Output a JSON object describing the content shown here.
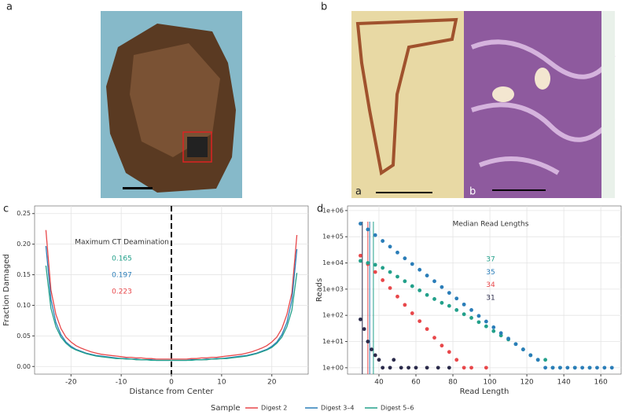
{
  "panel_labels": [
    "a",
    "b",
    "c",
    "d"
  ],
  "image_labels": [
    "a",
    "b"
  ],
  "legend_title": "Sample",
  "chart_data": [
    {
      "type": "line",
      "x_label": "Distance from Center",
      "y_label": "Fraction Damaged",
      "x": [
        -25,
        -24,
        -23,
        -22,
        -21,
        -20,
        -19,
        -18,
        -17,
        -16,
        -15,
        -14,
        -13,
        -12,
        -11,
        -10,
        -9,
        -8,
        -7,
        -6,
        -5,
        -4,
        -3,
        -2,
        -1,
        0,
        1,
        2,
        3,
        4,
        5,
        6,
        7,
        8,
        9,
        10,
        11,
        12,
        13,
        14,
        15,
        16,
        17,
        18,
        19,
        20,
        21,
        22,
        23,
        24,
        25
      ],
      "series": [
        {
          "name": "Digest 2",
          "color": "#e8474a",
          "values": [
            0.223,
            0.125,
            0.085,
            0.062,
            0.048,
            0.04,
            0.034,
            0.03,
            0.027,
            0.024,
            0.022,
            0.02,
            0.019,
            0.018,
            0.017,
            0.016,
            0.015,
            0.015,
            0.014,
            0.014,
            0.013,
            0.013,
            0.012,
            0.012,
            0.012,
            0.012,
            0.012,
            0.012,
            0.012,
            0.013,
            0.013,
            0.014,
            0.014,
            0.015,
            0.015,
            0.016,
            0.017,
            0.018,
            0.019,
            0.02,
            0.022,
            0.024,
            0.027,
            0.03,
            0.034,
            0.04,
            0.048,
            0.062,
            0.085,
            0.12,
            0.215
          ]
        },
        {
          "name": "Digest 3–4",
          "color": "#2a7db8",
          "values": [
            0.197,
            0.11,
            0.072,
            0.052,
            0.04,
            0.033,
            0.028,
            0.025,
            0.022,
            0.02,
            0.018,
            0.017,
            0.016,
            0.015,
            0.014,
            0.013,
            0.013,
            0.012,
            0.012,
            0.011,
            0.011,
            0.011,
            0.01,
            0.01,
            0.01,
            0.01,
            0.01,
            0.01,
            0.01,
            0.011,
            0.011,
            0.011,
            0.012,
            0.012,
            0.013,
            0.013,
            0.014,
            0.015,
            0.016,
            0.017,
            0.018,
            0.02,
            0.022,
            0.025,
            0.028,
            0.033,
            0.04,
            0.052,
            0.072,
            0.108,
            0.192
          ]
        },
        {
          "name": "Digest 5–6",
          "color": "#22a08a",
          "values": [
            0.165,
            0.095,
            0.065,
            0.048,
            0.038,
            0.031,
            0.027,
            0.024,
            0.021,
            0.019,
            0.017,
            0.016,
            0.015,
            0.014,
            0.013,
            0.013,
            0.012,
            0.012,
            0.011,
            0.011,
            0.011,
            0.01,
            0.01,
            0.01,
            0.01,
            0.01,
            0.01,
            0.01,
            0.01,
            0.01,
            0.011,
            0.011,
            0.011,
            0.012,
            0.012,
            0.013,
            0.013,
            0.014,
            0.015,
            0.016,
            0.017,
            0.019,
            0.021,
            0.024,
            0.027,
            0.031,
            0.038,
            0.048,
            0.065,
            0.092,
            0.153
          ]
        }
      ],
      "xlim": [
        -27.25,
        27.25
      ],
      "xticks": [
        -20,
        -10,
        0,
        10,
        20
      ],
      "ylim": [
        -0.0125,
        0.2625
      ],
      "yticks": [
        {
          "value": 0,
          "label": "0.00"
        },
        {
          "value": 0.05,
          "label": "0.05"
        },
        {
          "value": 0.1,
          "label": "0.10"
        },
        {
          "value": 0.15,
          "label": "0.15"
        },
        {
          "value": 0.2,
          "label": "0.20"
        },
        {
          "value": 0.25,
          "label": "0.25"
        }
      ],
      "grid": true,
      "vline": 0,
      "annotation_title": "Maximum CT Deamination",
      "annotation_values": [
        {
          "value": 0.165,
          "color": "#22a08a"
        },
        {
          "value": 0.197,
          "color": "#2a7db8"
        },
        {
          "value": 0.223,
          "color": "#e8474a"
        }
      ]
    },
    {
      "type": "scatter",
      "x_label": "Read Length",
      "y_label": "Reads",
      "log_y": true,
      "series": [
        {
          "color": "#2a2a4a",
          "x": [
            30,
            32,
            34,
            36,
            38,
            40,
            42,
            46,
            48,
            52,
            56,
            60,
            66,
            72,
            78
          ],
          "values": [
            70,
            30,
            10,
            5,
            3,
            2,
            1,
            1,
            2,
            1,
            1,
            1,
            1,
            1,
            1
          ]
        },
        {
          "name": "Digest 2",
          "color": "#e8474a",
          "x": [
            30,
            34,
            38,
            42,
            46,
            50,
            54,
            58,
            62,
            66,
            70,
            74,
            78,
            82,
            86,
            90,
            98
          ],
          "values": [
            19000,
            9000,
            4500,
            2200,
            1100,
            520,
            250,
            120,
            60,
            30,
            14,
            7,
            4,
            2,
            1,
            1,
            1
          ]
        },
        {
          "name": "Digest 5–6",
          "color": "#22a08a",
          "x": [
            30,
            34,
            38,
            42,
            46,
            50,
            54,
            58,
            62,
            66,
            70,
            74,
            78,
            82,
            86,
            90,
            94,
            98,
            102,
            106,
            110,
            114,
            118,
            122,
            126,
            130,
            134,
            138,
            146,
            154
          ],
          "values": [
            12000,
            10000,
            8500,
            6500,
            4500,
            3000,
            2000,
            1300,
            900,
            600,
            420,
            300,
            230,
            160,
            110,
            80,
            55,
            38,
            25,
            17,
            12,
            8,
            5,
            3,
            2,
            2,
            1,
            1,
            1,
            1
          ]
        },
        {
          "name": "Digest 3–4",
          "color": "#2a7db8",
          "x": [
            30,
            34,
            38,
            42,
            46,
            50,
            54,
            58,
            62,
            66,
            70,
            74,
            78,
            82,
            86,
            90,
            94,
            98,
            102,
            106,
            110,
            114,
            118,
            122,
            126,
            130,
            134,
            138,
            142,
            146,
            150,
            154,
            158,
            162,
            166
          ],
          "values": [
            316000,
            190000,
            115000,
            69000,
            42000,
            25000,
            15000,
            9100,
            5500,
            3300,
            2000,
            1200,
            720,
            440,
            260,
            160,
            95,
            58,
            35,
            21,
            13,
            8,
            5,
            3,
            2,
            1,
            1,
            1,
            1,
            1,
            1,
            1,
            1,
            1,
            1
          ]
        }
      ],
      "xlim": [
        23,
        171
      ],
      "xticks": [
        40,
        60,
        80,
        100,
        120,
        140,
        160
      ],
      "ylim": [
        0.57,
        1500000
      ],
      "yticks": [
        {
          "value": 1,
          "label": "1e+00"
        },
        {
          "value": 10,
          "label": "1e+01"
        },
        {
          "value": 100,
          "label": "1e+02"
        },
        {
          "value": 1000,
          "label": "1e+03"
        },
        {
          "value": 10000,
          "label": "1e+04"
        },
        {
          "value": 100000,
          "label": "1e+05"
        },
        {
          "value": 1000000,
          "label": "1e+06"
        }
      ],
      "grid": true,
      "annotation_title": "Median Read Lengths",
      "medians": [
        {
          "value": 37,
          "color": "#22a08a"
        },
        {
          "value": 35,
          "color": "#2a7db8"
        },
        {
          "value": 34,
          "color": "#e8474a"
        },
        {
          "value": 31,
          "color": "#2a2a4a"
        }
      ]
    }
  ]
}
